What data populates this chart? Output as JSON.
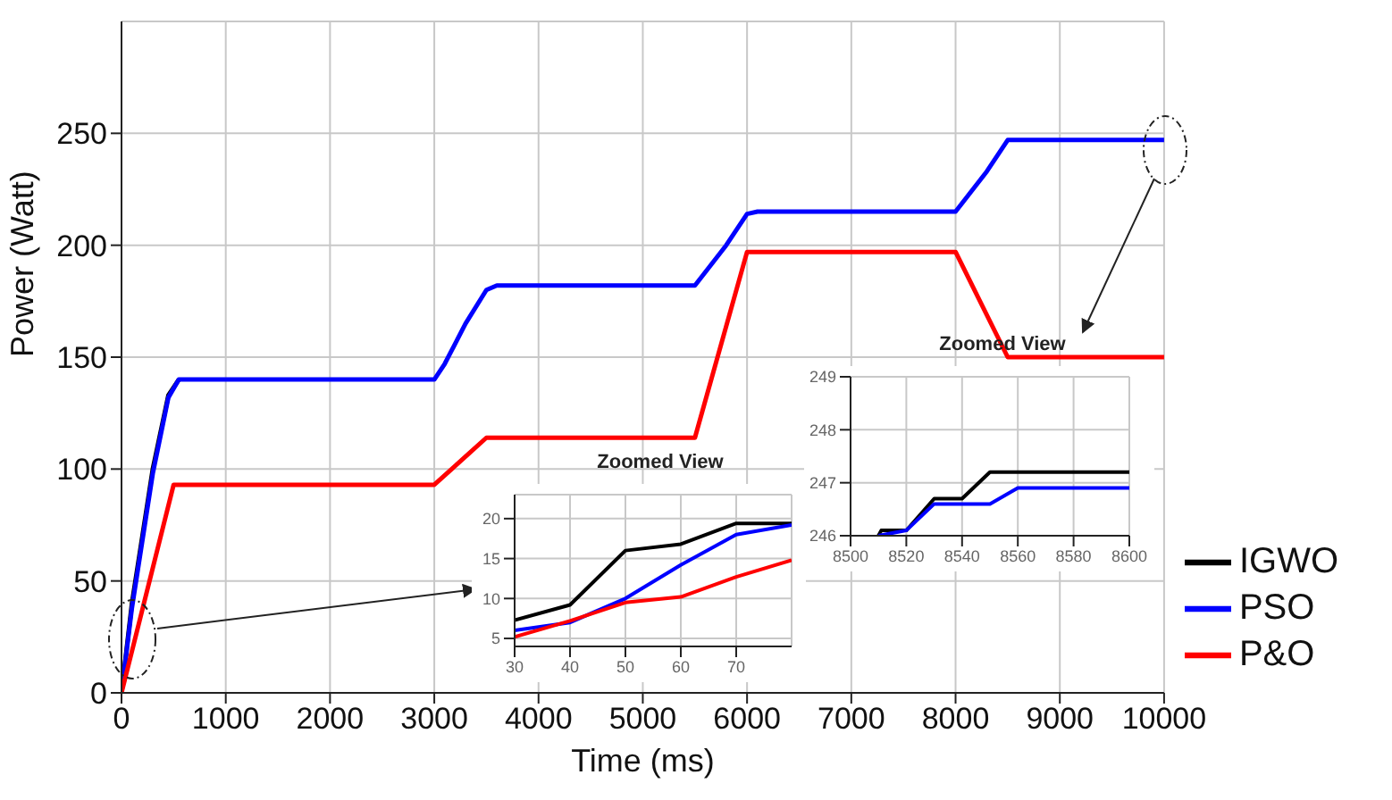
{
  "chart_data": [
    {
      "type": "line",
      "xlabel": "Time (ms)",
      "ylabel": "Power (Watt)",
      "xlim": [
        0,
        10000
      ],
      "xticks": [
        0,
        1000,
        2000,
        3000,
        4000,
        5000,
        6000,
        7000,
        8000,
        9000,
        10000
      ],
      "ylim": [
        0,
        300
      ],
      "yticks": [
        0,
        50,
        100,
        150,
        200,
        250
      ],
      "grid": true,
      "legend": "bottom right",
      "series": [
        {
          "name": "IGWO",
          "color": "#000000",
          "x": [
            0,
            100,
            200,
            300,
            450,
            550
          ],
          "values": [
            0,
            40,
            70,
            100,
            133,
            140
          ]
        },
        {
          "name": "PSO",
          "color": "#0000ff",
          "x": [
            0,
            100,
            200,
            300,
            450,
            550,
            3000,
            3100,
            3300,
            3500,
            3600,
            5500,
            5800,
            6000,
            6100,
            8000,
            8300,
            8500,
            10000
          ],
          "values": [
            0,
            38,
            68,
            98,
            132,
            140,
            140,
            147,
            165,
            180,
            182,
            182,
            200,
            214,
            215,
            215,
            233,
            247,
            247
          ]
        },
        {
          "name": "P&O",
          "color": "#ff0000",
          "x": [
            0,
            500,
            3000,
            3500,
            5500,
            6000,
            8000,
            8500,
            10000
          ],
          "values": [
            0,
            93,
            93,
            114,
            114,
            197,
            197,
            150,
            150
          ]
        }
      ]
    },
    {
      "type": "line",
      "title": "Zoomed View",
      "xlim": [
        30,
        80
      ],
      "xticks": [
        30,
        40,
        50,
        60,
        70
      ],
      "ylim": [
        4,
        23
      ],
      "yticks": [
        5,
        10,
        15,
        20
      ],
      "grid": true,
      "series": [
        {
          "color": "#000000",
          "x": [
            30,
            40,
            50,
            60,
            70,
            80
          ],
          "values": [
            7.3,
            9.2,
            16,
            16.8,
            19.4,
            19.4
          ]
        },
        {
          "color": "#0000ff",
          "x": [
            30,
            40,
            50,
            60,
            70,
            80
          ],
          "values": [
            6,
            7,
            10,
            14.2,
            18,
            19.2
          ]
        },
        {
          "color": "#ff0000",
          "x": [
            30,
            40,
            50,
            60,
            70,
            80
          ],
          "values": [
            5.2,
            7.2,
            9.5,
            10.2,
            12.7,
            14.8
          ]
        }
      ]
    },
    {
      "type": "line",
      "title": "Zoomed View",
      "xlim": [
        8500,
        8600
      ],
      "xticks": [
        8500,
        8520,
        8540,
        8560,
        8580,
        8600
      ],
      "ylim": [
        246,
        249
      ],
      "yticks": [
        246,
        247,
        248,
        249
      ],
      "grid": true,
      "series": [
        {
          "color": "#000000",
          "x": [
            8510,
            8511,
            8520,
            8530,
            8540,
            8550,
            8600
          ],
          "values": [
            246,
            246.1,
            246.1,
            246.7,
            246.7,
            247.2,
            247.2
          ]
        },
        {
          "color": "#0000ff",
          "x": [
            8510,
            8520,
            8530,
            8550,
            8560,
            8600
          ],
          "values": [
            246,
            246.1,
            246.6,
            246.6,
            246.9,
            246.9
          ]
        }
      ]
    }
  ]
}
